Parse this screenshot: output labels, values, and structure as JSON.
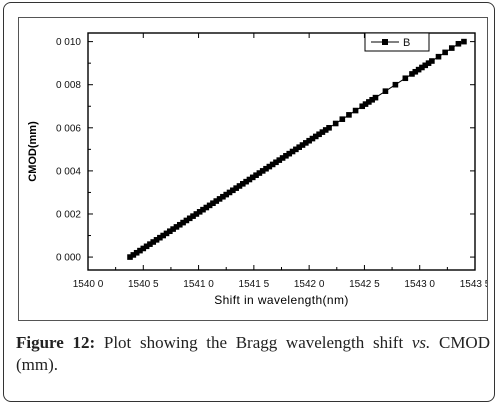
{
  "chart_data": {
    "type": "line",
    "xlabel": "Shift in wavelength(nm)",
    "ylabel": "CMOD(mm)",
    "xlim": [
      1540.0,
      1543.5
    ],
    "ylim": [
      -0.0006,
      0.0104
    ],
    "x_ticks": [
      1540.0,
      1540.5,
      1541.0,
      1541.5,
      1542.0,
      1542.5,
      1543.0,
      1543.5
    ],
    "x_tick_labels": [
      "1540 0",
      "1540 5",
      "1541 0",
      "1541 5",
      "1542 0",
      "1542 5",
      "1543 0",
      "1543 5"
    ],
    "y_ticks": [
      0.0,
      0.002,
      0.004,
      0.006,
      0.008,
      0.01
    ],
    "y_tick_labels": [
      "0 000",
      "0 002",
      "0 004",
      "0 006",
      "0 008",
      "0 010"
    ],
    "legend_position": "top-right",
    "grid": false,
    "series": [
      {
        "name": "B",
        "color": "#000000",
        "marker": "square",
        "x": [
          1540.38,
          1540.41,
          1540.44,
          1540.47,
          1540.5,
          1540.53,
          1540.56,
          1540.59,
          1540.62,
          1540.65,
          1540.68,
          1540.71,
          1540.74,
          1540.77,
          1540.8,
          1540.83,
          1540.86,
          1540.89,
          1540.92,
          1540.95,
          1540.98,
          1541.01,
          1541.04,
          1541.07,
          1541.1,
          1541.13,
          1541.16,
          1541.19,
          1541.22,
          1541.25,
          1541.28,
          1541.31,
          1541.34,
          1541.37,
          1541.4,
          1541.43,
          1541.46,
          1541.49,
          1541.52,
          1541.55,
          1541.58,
          1541.61,
          1541.64,
          1541.67,
          1541.7,
          1541.73,
          1541.76,
          1541.79,
          1541.82,
          1541.85,
          1541.88,
          1541.91,
          1541.94,
          1541.97,
          1542.0,
          1542.03,
          1542.06,
          1542.09,
          1542.12,
          1542.15,
          1542.18,
          1542.24,
          1542.3,
          1542.36,
          1542.42,
          1542.48,
          1542.51,
          1542.54,
          1542.57,
          1542.6,
          1542.69,
          1542.78,
          1542.87,
          1542.93,
          1542.96,
          1542.99,
          1543.02,
          1543.05,
          1543.08,
          1543.11,
          1543.17,
          1543.23,
          1543.29,
          1543.35,
          1543.4
        ],
        "y": [
          0.0,
          0.0001,
          0.0002,
          0.0003,
          0.0004,
          0.0005,
          0.0006,
          0.0007,
          0.0008,
          0.0009,
          0.001,
          0.0011,
          0.0012,
          0.0013,
          0.0014,
          0.0015,
          0.0016,
          0.0017,
          0.0018,
          0.0019,
          0.002,
          0.0021,
          0.0022,
          0.0023,
          0.0024,
          0.0025,
          0.0026,
          0.0027,
          0.0028,
          0.0029,
          0.003,
          0.0031,
          0.0032,
          0.0033,
          0.0034,
          0.0035,
          0.0036,
          0.0037,
          0.0038,
          0.0039,
          0.004,
          0.0041,
          0.0042,
          0.0043,
          0.0044,
          0.0045,
          0.0046,
          0.0047,
          0.0048,
          0.0049,
          0.005,
          0.0051,
          0.0052,
          0.0053,
          0.0054,
          0.0055,
          0.0056,
          0.0057,
          0.0058,
          0.0059,
          0.006,
          0.0062,
          0.0064,
          0.0066,
          0.0068,
          0.007,
          0.0071,
          0.0072,
          0.0073,
          0.0074,
          0.0077,
          0.008,
          0.0083,
          0.0085,
          0.0086,
          0.0087,
          0.0088,
          0.0089,
          0.009,
          0.0091,
          0.0093,
          0.0095,
          0.0097,
          0.0099,
          0.01
        ]
      }
    ]
  },
  "caption": {
    "label": "Figure 12:",
    "text_before": " Plot showing the Bragg wavelength shift ",
    "italic": "vs.",
    "text_after": " CMOD (mm)."
  }
}
